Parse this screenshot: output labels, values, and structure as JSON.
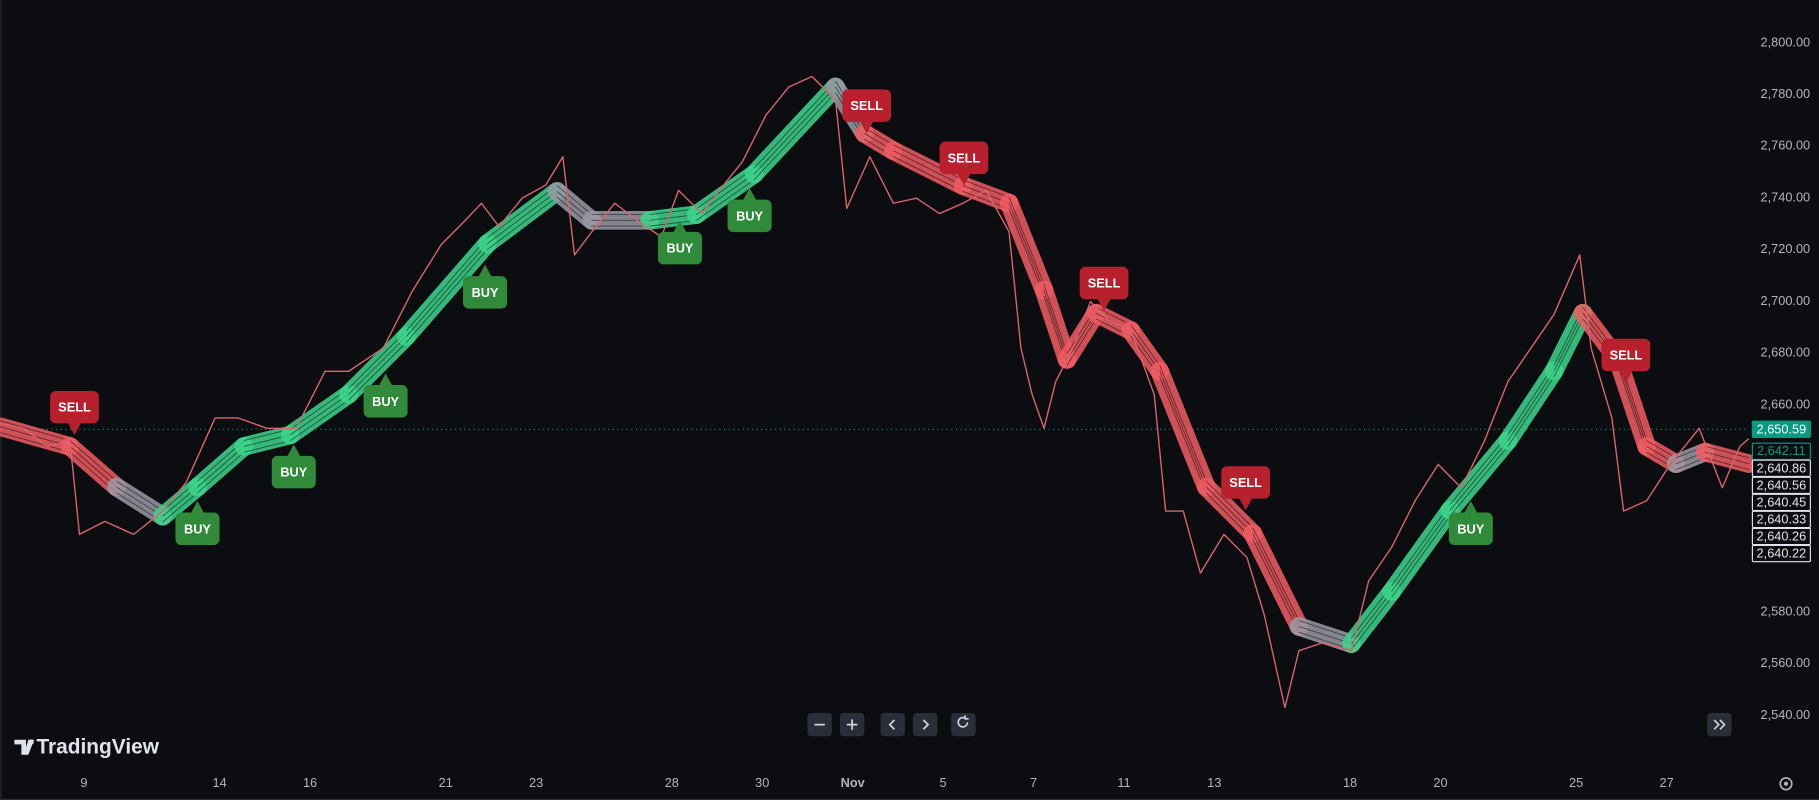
{
  "brand": "TradingView",
  "chart_data": {
    "type": "line",
    "x": [
      -1.85,
      -1.33,
      -0.82,
      -0.31,
      -0.1,
      0.46,
      1.1,
      1.74,
      2.26,
      2.9,
      3.41,
      4.05,
      4.69,
      5.33,
      5.85,
      6.62,
      7.26,
      7.9,
      8.41,
      8.79,
      9.18,
      9.69,
      10.21,
      10.59,
      10.85,
      11.23,
      11.74,
      12.26,
      12.77,
      13.15,
      13.67,
      14.05,
      14.56,
      15.08,
      15.59,
      16.1,
      16.62,
      16.87,
      17.38,
      17.9,
      18.41,
      18.92,
      19.44,
      19.95,
      20.46,
      20.72,
      20.97,
      21.23,
      21.49,
      21.87,
      22.26,
      22.64,
      23.15,
      23.67,
      23.92,
      24.31,
      24.69,
      25.21,
      25.72,
      26.1,
      26.56,
      26.87,
      27.38,
      28.03,
      28.41,
      28.92,
      29.44,
      29.95,
      30.46,
      30.97,
      31.49,
      32.0,
      32.51,
      33.08,
      33.33,
      33.79,
      34.05,
      34.56,
      35.08,
      35.72,
      36.23,
      36.62,
      36.82
    ],
    "series": [
      {
        "color": "#d9646b",
        "values": [
          2653,
          2651,
          2644,
          2646,
          2610,
          2615,
          2610,
          2619,
          2630,
          2655,
          2655,
          2651,
          2651,
          2673,
          2673,
          2682,
          2704,
          2722,
          2731,
          2738,
          2729,
          2740,
          2745,
          2756,
          2718,
          2727,
          2738,
          2731,
          2725,
          2743,
          2734,
          2743,
          2754,
          2772,
          2783,
          2787,
          2778,
          2736,
          2756,
          2738,
          2740,
          2734,
          2738,
          2743,
          2727,
          2682,
          2664,
          2651,
          2669,
          2682,
          2700,
          2693,
          2689,
          2664,
          2619,
          2619,
          2595,
          2610,
          2601,
          2579,
          2543,
          2565,
          2568,
          2565,
          2592,
          2605,
          2623,
          2637,
          2628,
          2646,
          2669,
          2682,
          2695,
          2718,
          2682,
          2655,
          2619,
          2623,
          2637,
          2651,
          2628,
          2644,
          2647
        ]
      }
    ],
    "ribbon": {
      "x": [
        -1.85,
        -0.31,
        0.72,
        1.74,
        2.51,
        3.54,
        4.56,
        5.85,
        7.13,
        8.92,
        10.46,
        11.23,
        12.51,
        13.54,
        14.82,
        16.62,
        17.26,
        17.9,
        19.44,
        20.46,
        21.23,
        21.74,
        22.38,
        23.15,
        23.79,
        24.82,
        25.85,
        26.87,
        28.03,
        28.92,
        30.21,
        31.49,
        32.51,
        33.15,
        33.92,
        34.56,
        35.21,
        35.85,
        36.82
      ],
      "values": [
        2651.6,
        2644.0,
        2628.3,
        2617.0,
        2628.3,
        2644.0,
        2648.4,
        2664.1,
        2686.5,
        2722.4,
        2742.6,
        2731.4,
        2731.4,
        2733.6,
        2749.3,
        2783.0,
        2765.0,
        2758.3,
        2744.8,
        2738.1,
        2704.5,
        2677.6,
        2695.5,
        2688.8,
        2673.1,
        2628.3,
        2610.3,
        2574.4,
        2567.7,
        2587.9,
        2619.3,
        2646.2,
        2673.1,
        2695.5,
        2677.6,
        2644.0,
        2637.3,
        2641.8,
        2637.3
      ],
      "colors": [
        "#f25c63",
        "#f25c63",
        "#f25c63",
        "#9a9aa6",
        "#3dd68c",
        "#3dd68c",
        "#3dd68c",
        "#3dd68c",
        "#3dd68c",
        "#3dd68c",
        "#3dd68c",
        "#9a9aa6",
        "#9a9aa6",
        "#3dd68c",
        "#3dd68c",
        "#3dd68c",
        "#9a9aa6",
        "#f25c63",
        "#f25c63",
        "#f25c63",
        "#f25c63",
        "#f25c63",
        "#f25c63",
        "#f25c63",
        "#f25c63",
        "#f25c63",
        "#f25c63",
        "#f25c63",
        "#9a9aa6",
        "#3dd68c",
        "#3dd68c",
        "#3dd68c",
        "#3dd68c",
        "#3dd68c",
        "#f25c63",
        "#f25c63",
        "#f25c63",
        "#9a9aa6",
        "#f25c63"
      ]
    },
    "signals": [
      {
        "label": "SELL",
        "x": -0.21,
        "y": 2648.4,
        "color": "#b9202e"
      },
      {
        "label": "BUY",
        "x": 2.51,
        "y": 2622.9,
        "color": "#2f8a3a"
      },
      {
        "label": "BUY",
        "x": 4.64,
        "y": 2644.8,
        "color": "#2f8a3a"
      },
      {
        "label": "BUY",
        "x": 6.67,
        "y": 2672.2,
        "color": "#2f8a3a"
      },
      {
        "label": "BUY",
        "x": 8.87,
        "y": 2714.3,
        "color": "#2f8a3a"
      },
      {
        "label": "BUY",
        "x": 13.18,
        "y": 2731.4,
        "color": "#2f8a3a"
      },
      {
        "label": "BUY",
        "x": 14.72,
        "y": 2743.9,
        "color": "#2f8a3a"
      },
      {
        "label": "SELL",
        "x": 17.31,
        "y": 2765.0,
        "color": "#b9202e"
      },
      {
        "label": "SELL",
        "x": 19.46,
        "y": 2744.8,
        "color": "#b9202e"
      },
      {
        "label": "SELL",
        "x": 22.56,
        "y": 2696.4,
        "color": "#b9202e"
      },
      {
        "label": "SELL",
        "x": 25.69,
        "y": 2619.3,
        "color": "#b9202e"
      },
      {
        "label": "BUY",
        "x": 30.67,
        "y": 2622.9,
        "color": "#2f8a3a"
      },
      {
        "label": "SELL",
        "x": 34.1,
        "y": 2668.6,
        "color": "#b9202e"
      }
    ],
    "xlim": [
      -1.846,
      36.821
    ],
    "xticks": [
      {
        "value": 0,
        "label": "9"
      },
      {
        "value": 3,
        "label": "14"
      },
      {
        "value": 5,
        "label": "16"
      },
      {
        "value": 8,
        "label": "21"
      },
      {
        "value": 10,
        "label": "23"
      },
      {
        "value": 13,
        "label": "28"
      },
      {
        "value": 15,
        "label": "30"
      },
      {
        "value": 17,
        "label": "Nov"
      },
      {
        "value": 19,
        "label": "5"
      },
      {
        "value": 21,
        "label": "7"
      },
      {
        "value": 23,
        "label": "11"
      },
      {
        "value": 25,
        "label": "13"
      },
      {
        "value": 28,
        "label": "18"
      },
      {
        "value": 30,
        "label": "20"
      },
      {
        "value": 33,
        "label": "25"
      },
      {
        "value": 35,
        "label": "27"
      }
    ],
    "ylim": [
      2520.73,
      2816.59
    ],
    "yticks": [
      {
        "value": 2540,
        "label": "2,540.00"
      },
      {
        "value": 2560,
        "label": "2,560.00"
      },
      {
        "value": 2580,
        "label": "2,580.00"
      },
      {
        "value": 2660,
        "label": "2,660.00"
      },
      {
        "value": 2680,
        "label": "2,680.00"
      },
      {
        "value": 2700,
        "label": "2,700.00"
      },
      {
        "value": 2720,
        "label": "2,720.00"
      },
      {
        "value": 2740,
        "label": "2,740.00"
      },
      {
        "value": 2760,
        "label": "2,760.00"
      },
      {
        "value": 2780,
        "label": "2,780.00"
      },
      {
        "value": 2800,
        "label": "2,800.00"
      }
    ],
    "price_labels": [
      {
        "value": 2650.59,
        "label": "2,650.59",
        "color": "#089981",
        "filled": true
      },
      {
        "value": 2642.11,
        "label": "2,642.11",
        "color": "#089981",
        "filled": false
      },
      {
        "value": 2640.86,
        "label": "2,640.86",
        "color": "#e0e3eb",
        "filled": false
      },
      {
        "value": 2640.56,
        "label": "2,640.56",
        "color": "#e0e3eb",
        "filled": false
      },
      {
        "value": 2640.45,
        "label": "2,640.45",
        "color": "#e0e3eb",
        "filled": false
      },
      {
        "value": 2640.33,
        "label": "2,640.33",
        "color": "#e0e3eb",
        "filled": false
      },
      {
        "value": 2640.26,
        "label": "2,640.26",
        "color": "#e0e3eb",
        "filled": false
      },
      {
        "value": 2640.22,
        "label": "2,640.22",
        "color": "#e0e3eb",
        "filled": false
      }
    ]
  }
}
